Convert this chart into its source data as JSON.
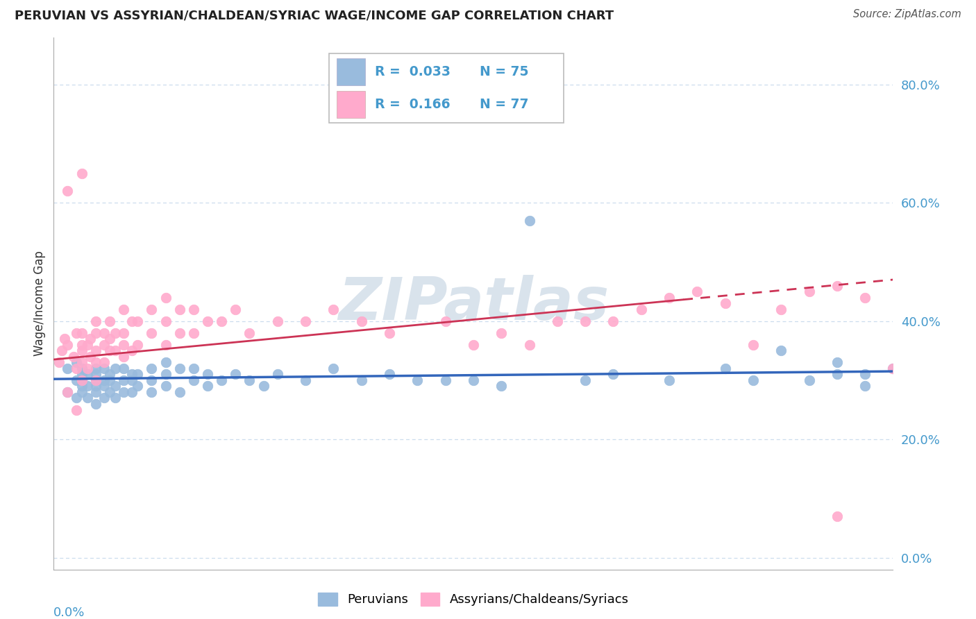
{
  "title": "PERUVIAN VS ASSYRIAN/CHALDEAN/SYRIAC WAGE/INCOME GAP CORRELATION CHART",
  "source": "Source: ZipAtlas.com",
  "ylabel": "Wage/Income Gap",
  "x_range": [
    0.0,
    0.3
  ],
  "y_range": [
    -0.02,
    0.88
  ],
  "y_ticks": [
    0.0,
    0.2,
    0.4,
    0.6,
    0.8
  ],
  "y_tick_labels": [
    "0.0%",
    "20.0%",
    "40.0%",
    "60.0%",
    "80.0%"
  ],
  "blue_color": "#99BBDD",
  "pink_color": "#FFAACC",
  "trend_blue": "#3366BB",
  "trend_pink": "#CC3355",
  "watermark": "ZIPatlas",
  "watermark_color": "#BBCCDD",
  "grid_color": "#CCDDEE",
  "tick_color": "#4499CC",
  "blue_x": [
    0.005,
    0.005,
    0.008,
    0.008,
    0.008,
    0.01,
    0.01,
    0.01,
    0.01,
    0.01,
    0.012,
    0.012,
    0.012,
    0.015,
    0.015,
    0.015,
    0.015,
    0.015,
    0.015,
    0.018,
    0.018,
    0.018,
    0.018,
    0.02,
    0.02,
    0.02,
    0.022,
    0.022,
    0.022,
    0.025,
    0.025,
    0.025,
    0.028,
    0.028,
    0.028,
    0.03,
    0.03,
    0.035,
    0.035,
    0.035,
    0.04,
    0.04,
    0.04,
    0.045,
    0.045,
    0.05,
    0.05,
    0.055,
    0.055,
    0.06,
    0.065,
    0.07,
    0.075,
    0.08,
    0.09,
    0.1,
    0.11,
    0.12,
    0.13,
    0.14,
    0.15,
    0.16,
    0.17,
    0.19,
    0.2,
    0.22,
    0.24,
    0.25,
    0.26,
    0.27,
    0.28,
    0.28,
    0.29,
    0.29,
    0.3
  ],
  "blue_y": [
    0.28,
    0.32,
    0.27,
    0.3,
    0.33,
    0.28,
    0.29,
    0.31,
    0.32,
    0.3,
    0.27,
    0.29,
    0.31,
    0.26,
    0.28,
    0.29,
    0.31,
    0.32,
    0.3,
    0.27,
    0.29,
    0.3,
    0.32,
    0.28,
    0.3,
    0.31,
    0.27,
    0.29,
    0.32,
    0.28,
    0.3,
    0.32,
    0.28,
    0.3,
    0.31,
    0.29,
    0.31,
    0.28,
    0.3,
    0.32,
    0.29,
    0.31,
    0.33,
    0.28,
    0.32,
    0.3,
    0.32,
    0.29,
    0.31,
    0.3,
    0.31,
    0.3,
    0.29,
    0.31,
    0.3,
    0.32,
    0.3,
    0.31,
    0.3,
    0.3,
    0.3,
    0.29,
    0.57,
    0.3,
    0.31,
    0.3,
    0.32,
    0.3,
    0.35,
    0.3,
    0.31,
    0.33,
    0.29,
    0.31,
    0.32
  ],
  "pink_x": [
    0.002,
    0.003,
    0.004,
    0.005,
    0.005,
    0.007,
    0.008,
    0.008,
    0.01,
    0.01,
    0.01,
    0.01,
    0.01,
    0.012,
    0.012,
    0.013,
    0.013,
    0.015,
    0.015,
    0.015,
    0.015,
    0.015,
    0.018,
    0.018,
    0.018,
    0.02,
    0.02,
    0.02,
    0.022,
    0.022,
    0.025,
    0.025,
    0.025,
    0.025,
    0.028,
    0.028,
    0.03,
    0.03,
    0.035,
    0.035,
    0.04,
    0.04,
    0.04,
    0.045,
    0.045,
    0.05,
    0.05,
    0.055,
    0.06,
    0.065,
    0.07,
    0.08,
    0.09,
    0.1,
    0.11,
    0.12,
    0.14,
    0.15,
    0.16,
    0.17,
    0.18,
    0.19,
    0.2,
    0.21,
    0.22,
    0.23,
    0.24,
    0.25,
    0.26,
    0.27,
    0.28,
    0.29,
    0.3,
    0.005,
    0.008,
    0.01,
    0.28
  ],
  "pink_y": [
    0.33,
    0.35,
    0.37,
    0.36,
    0.62,
    0.34,
    0.32,
    0.38,
    0.3,
    0.33,
    0.35,
    0.36,
    0.38,
    0.32,
    0.36,
    0.34,
    0.37,
    0.3,
    0.33,
    0.35,
    0.38,
    0.4,
    0.33,
    0.36,
    0.38,
    0.35,
    0.37,
    0.4,
    0.35,
    0.38,
    0.34,
    0.36,
    0.38,
    0.42,
    0.35,
    0.4,
    0.36,
    0.4,
    0.38,
    0.42,
    0.36,
    0.4,
    0.44,
    0.38,
    0.42,
    0.38,
    0.42,
    0.4,
    0.4,
    0.42,
    0.38,
    0.4,
    0.4,
    0.42,
    0.4,
    0.38,
    0.4,
    0.36,
    0.38,
    0.36,
    0.4,
    0.4,
    0.4,
    0.42,
    0.44,
    0.45,
    0.43,
    0.36,
    0.42,
    0.45,
    0.46,
    0.44,
    0.32,
    0.28,
    0.25,
    0.65,
    0.07
  ]
}
